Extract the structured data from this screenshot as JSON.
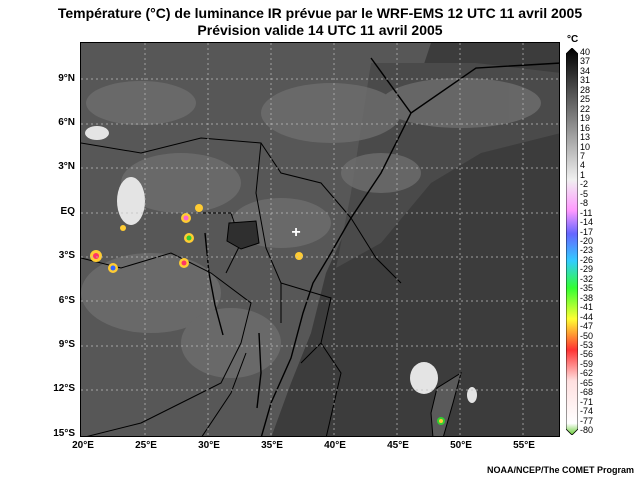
{
  "title_line1": "Température (°C) de luminance IR prévue par le WRF-EMS 12 UTC 11 avril 2005",
  "title_line2": "Prévision valide 14 UTC 11 avril 2005",
  "credit": "NOAA/NCEP/The COMET Program",
  "map": {
    "lon_range": [
      20,
      58
    ],
    "lat_range": [
      -15.2,
      11.5
    ],
    "lat_labels": [
      "9°N",
      "6°N",
      "3°N",
      "EQ",
      "3°S",
      "6°S",
      "9°S",
      "12°S",
      "15°S"
    ],
    "lon_labels": [
      "20°E",
      "25°E",
      "30°E",
      "35°E",
      "40°E",
      "45°E",
      "50°E",
      "55°E"
    ],
    "marker": "+",
    "colors": {
      "background": "#3f3f3f",
      "land": "#5a5a5a",
      "cold_cloud": "#dcdcdc",
      "border": "#000000",
      "grid": "#bfbfbf"
    }
  },
  "colorbar": {
    "unit": "°C",
    "ticks": [
      "40",
      "37",
      "34",
      "31",
      "28",
      "25",
      "22",
      "19",
      "16",
      "13",
      "10",
      "7",
      "4",
      "1",
      "-2",
      "-5",
      "-8",
      "-11",
      "-14",
      "-17",
      "-20",
      "-23",
      "-26",
      "-29",
      "-32",
      "-35",
      "-38",
      "-41",
      "-44",
      "-47",
      "-50",
      "-53",
      "-56",
      "-59",
      "-62",
      "-65",
      "-68",
      "-71",
      "-74",
      "-77",
      "-80"
    ]
  }
}
